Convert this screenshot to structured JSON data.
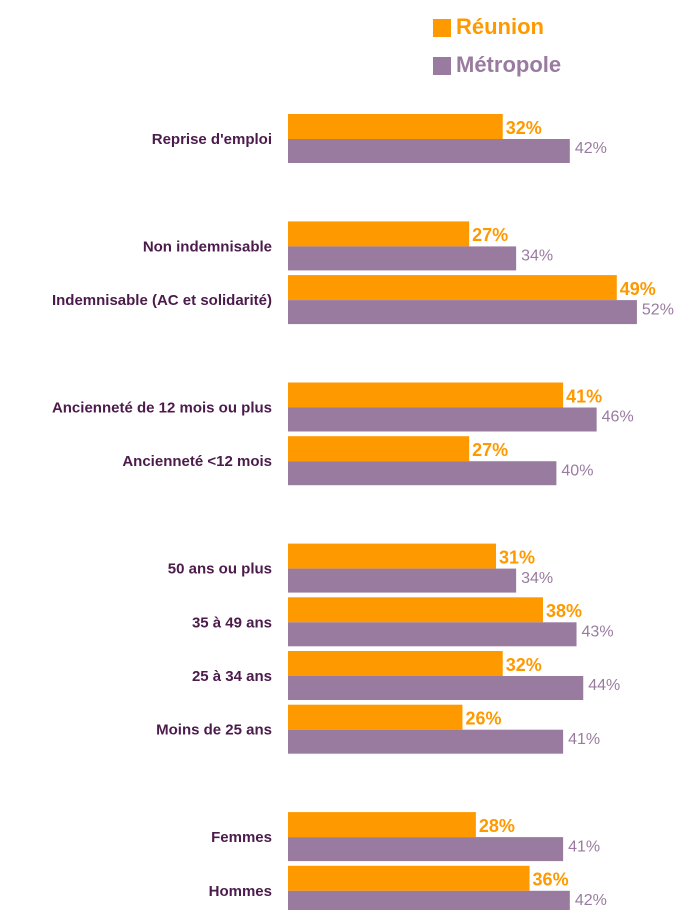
{
  "chart_data": {
    "type": "bar",
    "orientation": "horizontal",
    "categories": [
      "Reprise d'emploi",
      null,
      "Non indemnisable",
      "Indemnisable (AC et solidarité)",
      null,
      "Ancienneté de 12 mois ou plus",
      "Ancienneté <12 mois",
      null,
      "50 ans ou plus",
      "35 à 49 ans",
      "25 à 34 ans",
      "Moins de 25 ans",
      null,
      "Femmes",
      "Hommes"
    ],
    "series": [
      {
        "name": "Réunion",
        "color": "#ff9900",
        "values": [
          32,
          null,
          27,
          49,
          null,
          41,
          27,
          null,
          31,
          38,
          32,
          26,
          null,
          28,
          36
        ],
        "value_labels": [
          "32%",
          null,
          "27%",
          "49%",
          null,
          "41%",
          "27%",
          null,
          "31%",
          "38%",
          "32%",
          "26%",
          null,
          "28%",
          "36%"
        ]
      },
      {
        "name": "Métropole",
        "color": "#9a7ba0",
        "values": [
          42,
          null,
          34,
          52,
          null,
          46,
          40,
          null,
          34,
          43,
          44,
          41,
          null,
          41,
          42
        ],
        "value_labels": [
          "42%",
          null,
          "34%",
          "52%",
          null,
          "46%",
          "40%",
          null,
          "34%",
          "43%",
          "44%",
          "41%",
          null,
          "41%",
          "42%"
        ]
      }
    ],
    "legend": "top-right"
  }
}
